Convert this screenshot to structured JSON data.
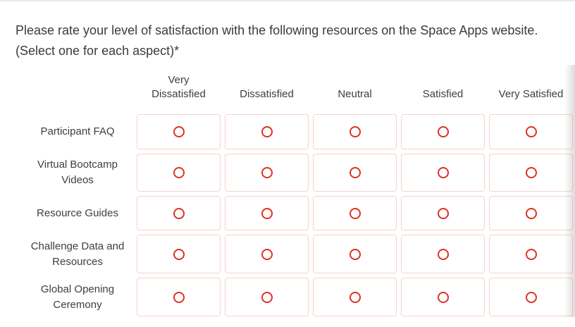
{
  "question": {
    "text": "Please rate your level of satisfaction with the following resources on the Space Apps website. (Select one for each aspect)*"
  },
  "matrix": {
    "columns": [
      "Very Dissatisfied",
      "Dissatisfied",
      "Neutral",
      "Satisfied",
      "Very Satisfied"
    ],
    "rows": [
      {
        "label": "Participant FAQ",
        "selected": null
      },
      {
        "label": "Virtual Bootcamp Videos",
        "selected": null
      },
      {
        "label": "Resource Guides",
        "selected": null
      },
      {
        "label": "Challenge Data and Resources",
        "selected": null
      },
      {
        "label": "Global Opening Ceremony",
        "selected": null
      }
    ]
  },
  "icons": {
    "radio_unselected": "hollow-red-circle"
  },
  "colors": {
    "radio_ring": "#dc3226",
    "cell_border": "#f5d3cd",
    "text": "#3b3b3b",
    "top_divider": "#e9e9e9"
  }
}
